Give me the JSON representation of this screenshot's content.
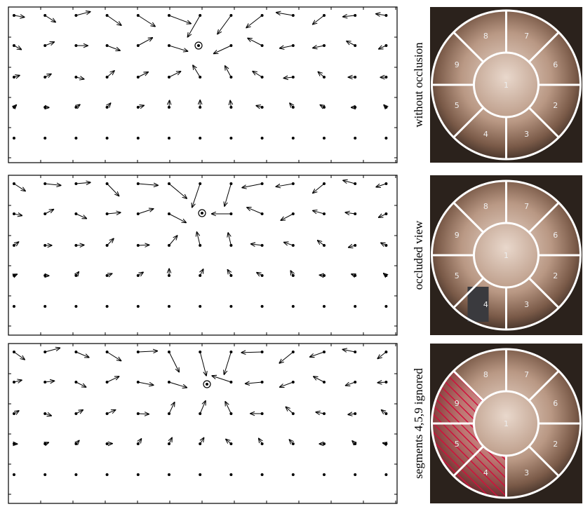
{
  "panels": [
    {
      "label": "without occlusion",
      "segments": [
        "1",
        "2",
        "3",
        "4",
        "5",
        "6",
        "7",
        "8",
        "9"
      ]
    },
    {
      "label": "occluded view",
      "segments": [
        "1",
        "2",
        "3",
        "4",
        "5",
        "6",
        "7",
        "8",
        "9"
      ]
    },
    {
      "label": "segments 4,5,9 ignored",
      "segments": [
        "1",
        "2",
        "3",
        "4",
        "5",
        "6",
        "7",
        "8",
        "9"
      ]
    }
  ]
}
